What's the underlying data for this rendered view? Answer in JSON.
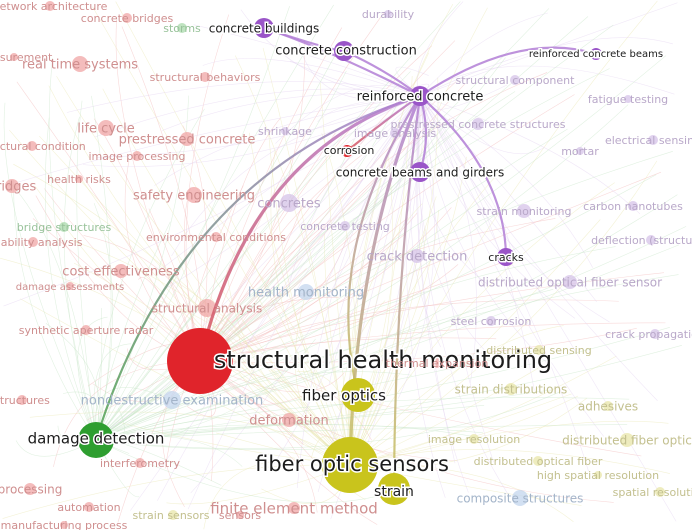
{
  "focus_node": "reinforced concrete",
  "colors": {
    "red": "#e0242b",
    "purple": "#9a55c8",
    "yellow": "#c9c41c",
    "green": "#2e9e30",
    "blue": "#8fb2d8"
  },
  "nodes": [
    {
      "id": "n1",
      "label": "structural health monitoring",
      "cluster": "red",
      "importance": "high"
    },
    {
      "id": "n2",
      "label": "fiber optic sensors",
      "cluster": "yellow",
      "importance": "high"
    },
    {
      "id": "n3",
      "label": "damage detection",
      "cluster": "green",
      "importance": "medium"
    },
    {
      "id": "n4",
      "label": "fiber optics",
      "cluster": "yellow",
      "importance": "medium"
    },
    {
      "id": "n5",
      "label": "strain",
      "cluster": "yellow",
      "importance": "medium"
    },
    {
      "id": "n6",
      "label": "reinforced concrete",
      "cluster": "purple",
      "importance": "medium"
    },
    {
      "id": "n7",
      "label": "concrete construction",
      "cluster": "purple",
      "importance": "medium"
    },
    {
      "id": "n8",
      "label": "concrete buildings",
      "cluster": "purple",
      "importance": "medium"
    },
    {
      "id": "n9",
      "label": "reinforced concrete beams",
      "cluster": "purple",
      "importance": "low"
    },
    {
      "id": "n10",
      "label": "concrete beams and girders",
      "cluster": "purple",
      "importance": "medium"
    },
    {
      "id": "n11",
      "label": "cracks",
      "cluster": "purple",
      "importance": "medium"
    },
    {
      "id": "n12",
      "label": "corrosion",
      "cluster": "red",
      "importance": "low"
    },
    {
      "id": "n13",
      "label": "nondestructive examination",
      "cluster": "blue",
      "importance": "faded"
    },
    {
      "id": "n14",
      "label": "deformation",
      "cluster": "red",
      "importance": "faded"
    },
    {
      "id": "n15",
      "label": "interferometry",
      "cluster": "red",
      "importance": "faded"
    },
    {
      "id": "n16",
      "label": "finite element method",
      "cluster": "red",
      "importance": "faded"
    },
    {
      "id": "n17",
      "label": "strain sensors",
      "cluster": "yellow",
      "importance": "faded"
    },
    {
      "id": "n18",
      "label": "automation",
      "cluster": "red",
      "importance": "faded"
    },
    {
      "id": "n19",
      "label": "processing",
      "cluster": "red",
      "importance": "faded"
    },
    {
      "id": "n20",
      "label": "structures",
      "cluster": "red",
      "importance": "faded"
    },
    {
      "id": "n21",
      "label": "synthetic aperture radar",
      "cluster": "red",
      "importance": "faded"
    },
    {
      "id": "n22",
      "label": "structural analysis",
      "cluster": "red",
      "importance": "faded"
    },
    {
      "id": "n23",
      "label": "health monitoring",
      "cluster": "blue",
      "importance": "faded"
    },
    {
      "id": "n24",
      "label": "cost effectiveness",
      "cluster": "red",
      "importance": "faded"
    },
    {
      "id": "n25",
      "label": "damage assessments",
      "cluster": "red",
      "importance": "faded"
    },
    {
      "id": "n26",
      "label": "environmental conditions",
      "cluster": "red",
      "importance": "faded"
    },
    {
      "id": "n27",
      "label": "reliability analysis",
      "cluster": "red",
      "importance": "faded"
    },
    {
      "id": "n28",
      "label": "bridge structures",
      "cluster": "green",
      "importance": "faded"
    },
    {
      "id": "n29",
      "label": "safety engineering",
      "cluster": "red",
      "importance": "faded"
    },
    {
      "id": "n30",
      "label": "bridges",
      "cluster": "red",
      "importance": "faded"
    },
    {
      "id": "n31",
      "label": "health risks",
      "cluster": "red",
      "importance": "faded"
    },
    {
      "id": "n32",
      "label": "image processing",
      "cluster": "red",
      "importance": "faded"
    },
    {
      "id": "n33",
      "label": "life cycle",
      "cluster": "red",
      "importance": "faded"
    },
    {
      "id": "n34",
      "label": "structural condition",
      "cluster": "red",
      "importance": "faded"
    },
    {
      "id": "n35",
      "label": "prestressed concrete",
      "cluster": "red",
      "importance": "faded"
    },
    {
      "id": "n36",
      "label": "real time systems",
      "cluster": "red",
      "importance": "faded"
    },
    {
      "id": "n37",
      "label": "structural behaviors",
      "cluster": "red",
      "importance": "faded"
    },
    {
      "id": "n38",
      "label": "concrete bridges",
      "cluster": "red",
      "importance": "faded"
    },
    {
      "id": "n39",
      "label": "network architecture",
      "cluster": "red",
      "importance": "faded"
    },
    {
      "id": "n40",
      "label": "durability",
      "cluster": "purple",
      "importance": "faded"
    },
    {
      "id": "n41",
      "label": "structural component",
      "cluster": "purple",
      "importance": "faded"
    },
    {
      "id": "n42",
      "label": "fatigue testing",
      "cluster": "purple",
      "importance": "faded"
    },
    {
      "id": "n43",
      "label": "prestressed concrete structures",
      "cluster": "purple",
      "importance": "faded"
    },
    {
      "id": "n44",
      "label": "electrical sensing",
      "cluster": "purple",
      "importance": "faded"
    },
    {
      "id": "n45",
      "label": "shrinkage",
      "cluster": "purple",
      "importance": "faded"
    },
    {
      "id": "n46",
      "label": "image analysis",
      "cluster": "purple",
      "importance": "faded"
    },
    {
      "id": "n47",
      "label": "mortar",
      "cluster": "purple",
      "importance": "faded"
    },
    {
      "id": "n48",
      "label": "carbon nanotubes",
      "cluster": "purple",
      "importance": "faded"
    },
    {
      "id": "n49",
      "label": "strain monitoring",
      "cluster": "purple",
      "importance": "faded"
    },
    {
      "id": "n50",
      "label": "concretes",
      "cluster": "purple",
      "importance": "faded"
    },
    {
      "id": "n51",
      "label": "concrete testing",
      "cluster": "purple",
      "importance": "faded"
    },
    {
      "id": "n52",
      "label": "deflection (structural)",
      "cluster": "purple",
      "importance": "faded"
    },
    {
      "id": "n53",
      "label": "crack detection",
      "cluster": "purple",
      "importance": "faded"
    },
    {
      "id": "n54",
      "label": "distributed optical fiber sensor",
      "cluster": "purple",
      "importance": "faded"
    },
    {
      "id": "n55",
      "label": "steel corrosion",
      "cluster": "purple",
      "importance": "faded"
    },
    {
      "id": "n56",
      "label": "crack propagation",
      "cluster": "purple",
      "importance": "faded"
    },
    {
      "id": "n57",
      "label": "distributed sensing",
      "cluster": "yellow",
      "importance": "faded"
    },
    {
      "id": "n58",
      "label": "thermal expansion",
      "cluster": "red",
      "importance": "faded"
    },
    {
      "id": "n59",
      "label": "strain distributions",
      "cluster": "yellow",
      "importance": "faded"
    },
    {
      "id": "n60",
      "label": "adhesives",
      "cluster": "yellow",
      "importance": "faded"
    },
    {
      "id": "n61",
      "label": "image resolution",
      "cluster": "yellow",
      "importance": "faded"
    },
    {
      "id": "n62",
      "label": "distributed fiber optic",
      "cluster": "yellow",
      "importance": "faded"
    },
    {
      "id": "n63",
      "label": "distributed optical fiber",
      "cluster": "yellow",
      "importance": "faded"
    },
    {
      "id": "n64",
      "label": "high spatial resolution",
      "cluster": "yellow",
      "importance": "faded"
    },
    {
      "id": "n65",
      "label": "composite structures",
      "cluster": "blue",
      "importance": "faded"
    },
    {
      "id": "n66",
      "label": "spatial resolution",
      "cluster": "yellow",
      "importance": "faded"
    },
    {
      "id": "n67",
      "label": "sensors",
      "cluster": "red",
      "importance": "faded"
    },
    {
      "id": "n68",
      "label": "manufacturing process",
      "cluster": "red",
      "importance": "faded"
    },
    {
      "id": "n69",
      "label": "storms",
      "cluster": "green",
      "importance": "faded"
    },
    {
      "id": "n70",
      "label": "measurement",
      "cluster": "red",
      "importance": "faded"
    }
  ],
  "edges": [
    {
      "from": "n6",
      "to": "n7"
    },
    {
      "from": "n6",
      "to": "n8"
    },
    {
      "from": "n6",
      "to": "n9"
    },
    {
      "from": "n6",
      "to": "n10"
    },
    {
      "from": "n6",
      "to": "n11"
    },
    {
      "from": "n6",
      "to": "n12"
    },
    {
      "from": "n6",
      "to": "n1"
    },
    {
      "from": "n6",
      "to": "n3"
    },
    {
      "from": "n6",
      "to": "n4"
    },
    {
      "from": "n6",
      "to": "n2"
    },
    {
      "from": "n6",
      "to": "n5"
    },
    {
      "from": "n7",
      "to": "n8"
    }
  ]
}
